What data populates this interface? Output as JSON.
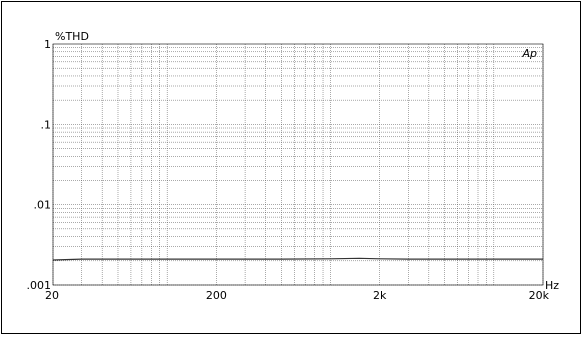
{
  "chart_data": {
    "type": "line",
    "ylabel": "%THD",
    "xlabel": "Hz",
    "logo": "Ap",
    "x_scale": "log",
    "y_scale": "log",
    "xlim": [
      20,
      20000
    ],
    "ylim": [
      0.001,
      1
    ],
    "x_tick_labels": [
      {
        "value": 20,
        "label": "20"
      },
      {
        "value": 200,
        "label": "200"
      },
      {
        "value": 2000,
        "label": "2k"
      },
      {
        "value": 20000,
        "label": "20k"
      }
    ],
    "y_tick_labels": [
      {
        "value": 1,
        "label": "1"
      },
      {
        "value": 0.1,
        "label": ".1"
      },
      {
        "value": 0.01,
        "label": ".01"
      },
      {
        "value": 0.001,
        "label": ".001"
      }
    ],
    "grid": true,
    "series": [
      {
        "color": "#333333",
        "x": [
          20,
          30,
          50,
          100,
          200,
          500,
          1000,
          1500,
          2000,
          3000,
          5000,
          10000,
          20000
        ],
        "y": [
          0.00205,
          0.0021,
          0.0021,
          0.0021,
          0.0021,
          0.0021,
          0.00212,
          0.00215,
          0.00212,
          0.0021,
          0.0021,
          0.0021,
          0.0021
        ]
      }
    ]
  }
}
